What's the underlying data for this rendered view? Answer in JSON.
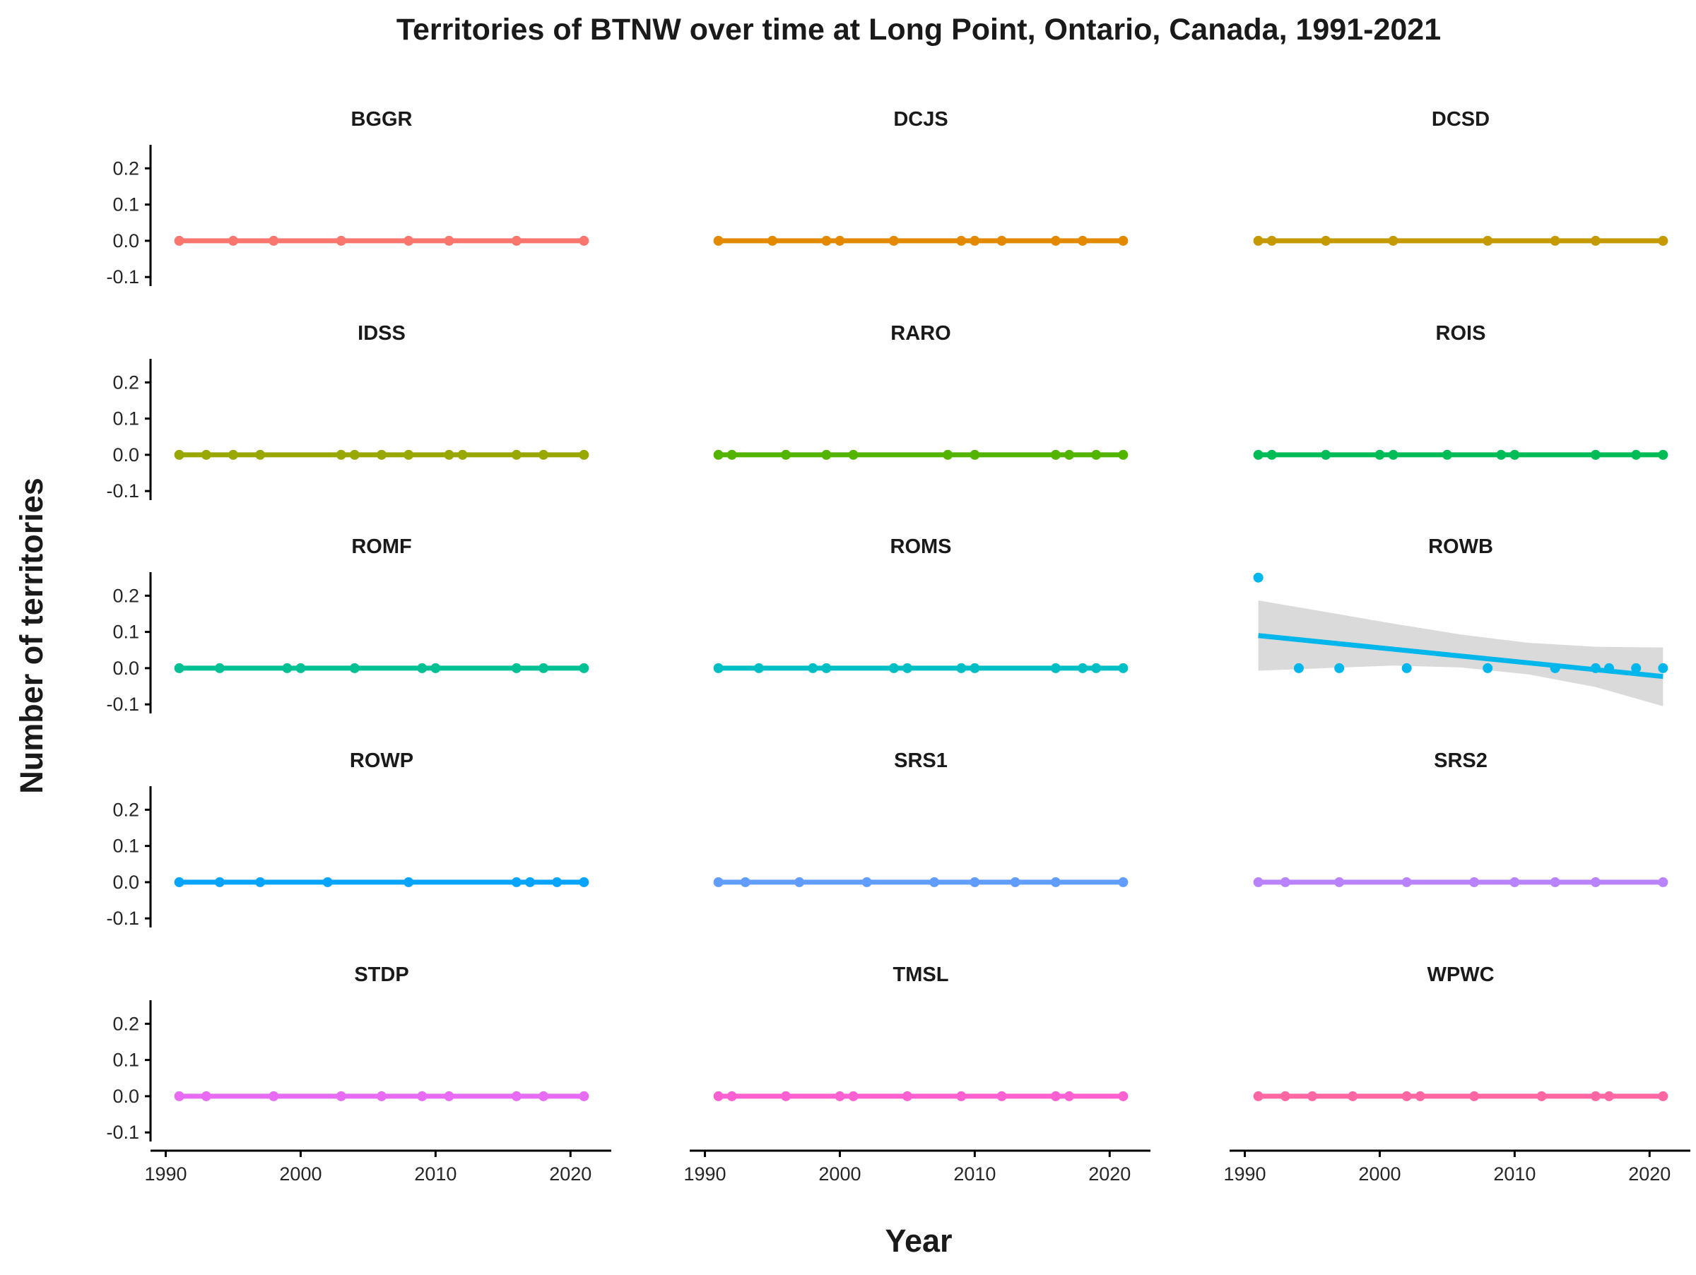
{
  "chart_data": {
    "type": "scatter",
    "title": "Territories of BTNW over time at Long Point, Ontario, Canada, 1991-2021",
    "xlabel": "Year",
    "ylabel": "Number of territories",
    "xlim": [
      1989.5,
      2022.5
    ],
    "ylim": [
      -0.125,
      0.265
    ],
    "x_ticks": [
      1990,
      2000,
      2010,
      2020
    ],
    "y_ticks": [
      -0.1,
      0.0,
      0.1,
      0.2
    ],
    "x_tick_labels": [
      "1990",
      "2000",
      "2010",
      "2020"
    ],
    "y_tick_labels": [
      "-0.1",
      "0.0",
      "0.1",
      "0.2"
    ],
    "grid": false,
    "legend": "none",
    "layout": "facet grid, 5 rows x 3 columns, free x axis shown on bottom row only",
    "smoother": "linear fit with grey confidence band",
    "band_color": "#d3d3d3",
    "series": [
      {
        "name": "BGGR",
        "color": "#F8766D",
        "x": [
          1991,
          1995,
          1998,
          2003,
          2008,
          2011,
          2016,
          2021
        ],
        "y": [
          0,
          0,
          0,
          0,
          0,
          0,
          0,
          0
        ],
        "fit": {
          "x": [
            1991,
            2021
          ],
          "y": [
            0,
            0
          ]
        }
      },
      {
        "name": "DCJS",
        "color": "#E38900",
        "x": [
          1991,
          1995,
          1999,
          2000,
          2004,
          2009,
          2010,
          2012,
          2016,
          2018,
          2021
        ],
        "y": [
          0,
          0,
          0,
          0,
          0,
          0,
          0,
          0,
          0,
          0,
          0
        ],
        "fit": {
          "x": [
            1991,
            2021
          ],
          "y": [
            0,
            0
          ]
        }
      },
      {
        "name": "DCSD",
        "color": "#C49A00",
        "x": [
          1991,
          1992,
          1996,
          2001,
          2008,
          2013,
          2016,
          2021
        ],
        "y": [
          0,
          0,
          0,
          0,
          0,
          0,
          0,
          0
        ],
        "fit": {
          "x": [
            1991,
            2021
          ],
          "y": [
            0,
            0
          ]
        }
      },
      {
        "name": "IDSS",
        "color": "#99A800",
        "x": [
          1991,
          1993,
          1995,
          1997,
          2003,
          2004,
          2006,
          2008,
          2011,
          2012,
          2016,
          2018,
          2021
        ],
        "y": [
          0,
          0,
          0,
          0,
          0,
          0,
          0,
          0,
          0,
          0,
          0,
          0,
          0
        ],
        "fit": {
          "x": [
            1991,
            2021
          ],
          "y": [
            0,
            0
          ]
        }
      },
      {
        "name": "RARO",
        "color": "#53B400",
        "x": [
          1991,
          1992,
          1996,
          1999,
          2001,
          2008,
          2010,
          2016,
          2017,
          2019,
          2021
        ],
        "y": [
          0,
          0,
          0,
          0,
          0,
          0,
          0,
          0,
          0,
          0,
          0
        ],
        "fit": {
          "x": [
            1991,
            2021
          ],
          "y": [
            0,
            0
          ]
        }
      },
      {
        "name": "ROIS",
        "color": "#00BC56",
        "x": [
          1991,
          1992,
          1996,
          2000,
          2001,
          2005,
          2009,
          2010,
          2016,
          2019,
          2021
        ],
        "y": [
          0,
          0,
          0,
          0,
          0,
          0,
          0,
          0,
          0,
          0,
          0
        ],
        "fit": {
          "x": [
            1991,
            2021
          ],
          "y": [
            0,
            0
          ]
        }
      },
      {
        "name": "ROMF",
        "color": "#00C094",
        "x": [
          1991,
          1994,
          1999,
          2000,
          2004,
          2009,
          2010,
          2016,
          2018,
          2021
        ],
        "y": [
          0,
          0,
          0,
          0,
          0,
          0,
          0,
          0,
          0,
          0
        ],
        "fit": {
          "x": [
            1991,
            2021
          ],
          "y": [
            0,
            0
          ]
        }
      },
      {
        "name": "ROMS",
        "color": "#00BFC4",
        "x": [
          1991,
          1994,
          1998,
          1999,
          2004,
          2005,
          2009,
          2010,
          2016,
          2018,
          2019,
          2021
        ],
        "y": [
          0,
          0,
          0,
          0,
          0,
          0,
          0,
          0,
          0,
          0,
          0,
          0
        ],
        "fit": {
          "x": [
            1991,
            2021
          ],
          "y": [
            0,
            0
          ]
        }
      },
      {
        "name": "ROWB",
        "color": "#00B6EB",
        "x": [
          1991,
          1994,
          1997,
          2002,
          2008,
          2013,
          2016,
          2017,
          2019,
          2021
        ],
        "y": [
          0.25,
          0,
          0,
          0,
          0,
          0,
          0,
          0,
          0,
          0
        ],
        "fit": {
          "x": [
            1991,
            2021
          ],
          "y": [
            0.09,
            -0.023
          ]
        },
        "band": {
          "x": [
            1991,
            1996,
            2001,
            2006,
            2011,
            2016,
            2021
          ],
          "lower": [
            -0.007,
            0.0,
            0.007,
            0.002,
            -0.017,
            -0.052,
            -0.105
          ],
          "upper": [
            0.187,
            0.155,
            0.123,
            0.093,
            0.07,
            0.059,
            0.057
          ]
        }
      },
      {
        "name": "ROWP",
        "color": "#06A4FF",
        "x": [
          1991,
          1994,
          1997,
          2002,
          2008,
          2016,
          2017,
          2019,
          2021
        ],
        "y": [
          0,
          0,
          0,
          0,
          0,
          0,
          0,
          0,
          0
        ],
        "fit": {
          "x": [
            1991,
            2021
          ],
          "y": [
            0,
            0
          ]
        }
      },
      {
        "name": "SRS1",
        "color": "#619CFF",
        "x": [
          1991,
          1993,
          1997,
          2002,
          2007,
          2010,
          2013,
          2016,
          2021
        ],
        "y": [
          0,
          0,
          0,
          0,
          0,
          0,
          0,
          0,
          0
        ],
        "fit": {
          "x": [
            1991,
            2021
          ],
          "y": [
            0,
            0
          ]
        }
      },
      {
        "name": "SRS2",
        "color": "#B983FF",
        "x": [
          1991,
          1993,
          1997,
          2002,
          2007,
          2010,
          2013,
          2016,
          2021
        ],
        "y": [
          0,
          0,
          0,
          0,
          0,
          0,
          0,
          0,
          0
        ],
        "fit": {
          "x": [
            1991,
            2021
          ],
          "y": [
            0,
            0
          ]
        }
      },
      {
        "name": "STDP",
        "color": "#E76BF3",
        "x": [
          1991,
          1993,
          1998,
          2003,
          2006,
          2009,
          2011,
          2016,
          2018,
          2021
        ],
        "y": [
          0,
          0,
          0,
          0,
          0,
          0,
          0,
          0,
          0,
          0
        ],
        "fit": {
          "x": [
            1991,
            2021
          ],
          "y": [
            0,
            0
          ]
        }
      },
      {
        "name": "TMSL",
        "color": "#FD61D1",
        "x": [
          1991,
          1992,
          1996,
          2000,
          2001,
          2005,
          2009,
          2012,
          2016,
          2017,
          2021
        ],
        "y": [
          0,
          0,
          0,
          0,
          0,
          0,
          0,
          0,
          0,
          0,
          0
        ],
        "fit": {
          "x": [
            1991,
            2021
          ],
          "y": [
            0,
            0
          ]
        }
      },
      {
        "name": "WPWC",
        "color": "#FF67A4",
        "x": [
          1991,
          1993,
          1995,
          1998,
          2002,
          2003,
          2007,
          2012,
          2016,
          2017,
          2021
        ],
        "y": [
          0,
          0,
          0,
          0,
          0,
          0,
          0,
          0,
          0,
          0,
          0
        ],
        "fit": {
          "x": [
            1991,
            2021
          ],
          "y": [
            0,
            0
          ]
        }
      }
    ]
  }
}
